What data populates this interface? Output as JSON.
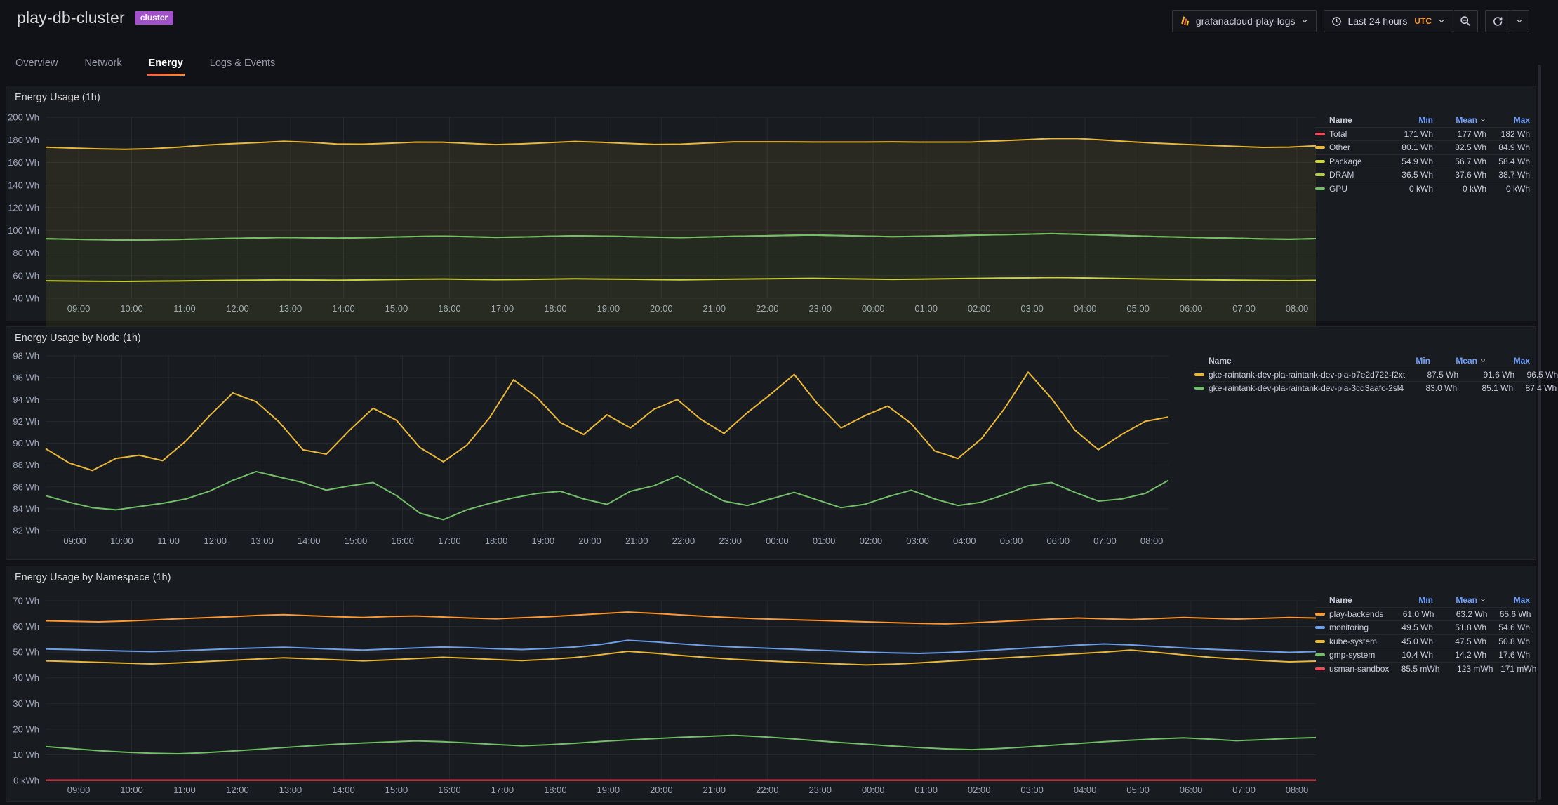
{
  "header": {
    "title": "play-db-cluster",
    "badge": "cluster"
  },
  "toolbar": {
    "datasource": {
      "label": "grafanacloud-play-logs"
    },
    "time_picker": {
      "label": "Last 24 hours",
      "timezone": "UTC"
    }
  },
  "tabs": [
    {
      "label": "Overview"
    },
    {
      "label": "Network"
    },
    {
      "label": "Energy"
    },
    {
      "label": "Logs & Events"
    }
  ],
  "active_tab": "Energy",
  "colors": {
    "accent_orange": "#FF8833",
    "badge_purple": "#A352CC",
    "legend_header_blue": "#6E9FFF",
    "utc_orange": "#FF9830"
  },
  "panels": [
    {
      "title": "Energy Usage (1h)",
      "legend": {
        "columns": [
          "Name",
          "Min",
          "Mean",
          "Max"
        ],
        "sorted_by": "Mean",
        "rows": [
          {
            "name": "Total",
            "color": "#F2495C",
            "min": "171 Wh",
            "mean": "177 Wh",
            "max": "182 Wh"
          },
          {
            "name": "Other",
            "color": "#EAB839",
            "min": "80.1 Wh",
            "mean": "82.5 Wh",
            "max": "84.9 Wh"
          },
          {
            "name": "Package",
            "color": "#CBD23B",
            "min": "54.9 Wh",
            "mean": "56.7 Wh",
            "max": "58.4 Wh"
          },
          {
            "name": "DRAM",
            "color": "#B5CC3C",
            "min": "36.5 Wh",
            "mean": "37.6 Wh",
            "max": "38.7 Wh"
          },
          {
            "name": "GPU",
            "color": "#73BF69",
            "min": "0 kWh",
            "mean": "0 kWh",
            "max": "0 kWh"
          }
        ]
      }
    },
    {
      "title": "Energy Usage by Node (1h)",
      "legend": {
        "columns": [
          "Name",
          "Min",
          "Mean",
          "Max"
        ],
        "sorted_by": "Mean",
        "rows": [
          {
            "name": "gke-raintank-dev-pla-raintank-dev-pla-b7e2d722-f2xt",
            "color": "#EAB839",
            "min": "87.5 Wh",
            "mean": "91.6 Wh",
            "max": "96.5 Wh"
          },
          {
            "name": "gke-raintank-dev-pla-raintank-dev-pla-3cd3aafc-2sl4",
            "color": "#73BF69",
            "min": "83.0 Wh",
            "mean": "85.1 Wh",
            "max": "87.4 Wh"
          }
        ]
      }
    },
    {
      "title": "Energy Usage by Namespace (1h)",
      "legend": {
        "columns": [
          "Name",
          "Min",
          "Mean",
          "Max"
        ],
        "sorted_by": "Mean",
        "rows": [
          {
            "name": "play-backends",
            "color": "#FF9830",
            "min": "61.0 Wh",
            "mean": "63.2 Wh",
            "max": "65.6 Wh"
          },
          {
            "name": "monitoring",
            "color": "#6E9FE8",
            "min": "49.5 Wh",
            "mean": "51.8 Wh",
            "max": "54.6 Wh"
          },
          {
            "name": "kube-system",
            "color": "#EAB839",
            "min": "45.0 Wh",
            "mean": "47.5 Wh",
            "max": "50.8 Wh"
          },
          {
            "name": "gmp-system",
            "color": "#73BF69",
            "min": "10.4 Wh",
            "mean": "14.2 Wh",
            "max": "17.6 Wh"
          },
          {
            "name": "usman-sandbox",
            "color": "#F2495C",
            "min": "85.5 mWh",
            "mean": "123 mWh",
            "max": "171 mWh"
          }
        ]
      }
    }
  ],
  "chart_data": [
    {
      "type": "line",
      "stacked": true,
      "title": "Energy Usage (1h)",
      "ylabel": "Wh",
      "ylim": [
        40,
        200
      ],
      "grid": true,
      "legend_position": "right-table",
      "y_tick_values": [
        200,
        180,
        160,
        140,
        120,
        100,
        80,
        60,
        40
      ],
      "y_tick_labels": [
        "200 Wh",
        "180 Wh",
        "160 Wh",
        "140 Wh",
        "120 Wh",
        "100 Wh",
        "80 Wh",
        "60 Wh",
        "40 Wh"
      ],
      "x_ticks": [
        "09:00",
        "10:00",
        "11:00",
        "12:00",
        "13:00",
        "14:00",
        "15:00",
        "16:00",
        "17:00",
        "18:00",
        "19:00",
        "20:00",
        "21:00",
        "22:00",
        "23:00",
        "00:00",
        "01:00",
        "02:00",
        "03:00",
        "04:00",
        "05:00",
        "06:00",
        "07:00",
        "08:00"
      ],
      "series": [
        {
          "name": "Package",
          "color": "#CBD23B",
          "values": [
            55.4,
            55.2,
            55.0,
            54.9,
            55.1,
            55.3,
            55.6,
            55.8,
            56.0,
            56.3,
            56.1,
            55.9,
            56.2,
            56.5,
            56.8,
            57.0,
            56.7,
            56.4,
            56.6,
            56.9,
            57.2,
            57.0,
            56.8,
            56.5,
            56.3,
            56.6,
            56.9,
            57.1,
            57.4,
            57.6,
            57.3,
            57.0,
            56.7,
            56.9,
            57.2,
            57.5,
            57.8,
            58.0,
            58.4,
            58.1,
            57.7,
            57.3,
            56.9,
            56.6,
            56.3,
            56.0,
            55.7,
            55.5,
            55.8
          ]
        },
        {
          "name": "DRAM",
          "color": "#B5CC3C",
          "values": [
            37.2,
            37.0,
            36.8,
            36.6,
            36.5,
            36.7,
            36.9,
            37.1,
            37.3,
            37.5,
            37.4,
            37.2,
            37.4,
            37.6,
            37.8,
            37.9,
            37.7,
            37.5,
            37.6,
            37.8,
            38.0,
            37.9,
            37.7,
            37.5,
            37.4,
            37.6,
            37.8,
            38.0,
            38.2,
            38.3,
            38.1,
            37.9,
            37.7,
            37.8,
            38.0,
            38.2,
            38.4,
            38.6,
            38.7,
            38.5,
            38.2,
            37.9,
            37.6,
            37.4,
            37.2,
            37.0,
            36.8,
            36.7,
            36.9
          ]
        },
        {
          "name": "GPU",
          "color": "#73BF69",
          "values": [
            0,
            0,
            0,
            0,
            0,
            0,
            0,
            0,
            0,
            0,
            0,
            0,
            0,
            0,
            0,
            0,
            0,
            0,
            0,
            0,
            0,
            0,
            0,
            0,
            0,
            0,
            0,
            0,
            0,
            0,
            0,
            0,
            0,
            0,
            0,
            0,
            0,
            0,
            0,
            0,
            0,
            0,
            0,
            0,
            0,
            0,
            0,
            0,
            0
          ]
        },
        {
          "name": "Other",
          "color": "#EAB839",
          "values": [
            80.9,
            80.5,
            80.2,
            80.1,
            80.6,
            81.5,
            82.8,
            83.6,
            84.2,
            84.9,
            84.3,
            83.2,
            82.5,
            82.9,
            83.4,
            83.0,
            82.4,
            81.8,
            82.2,
            82.8,
            83.3,
            82.9,
            82.3,
            81.9,
            82.4,
            83.0,
            83.5,
            83.1,
            82.6,
            82.2,
            82.7,
            83.2,
            83.8,
            83.3,
            82.8,
            82.4,
            82.9,
            83.5,
            84.1,
            84.6,
            83.9,
            83.1,
            82.5,
            82.0,
            81.6,
            81.2,
            80.8,
            81.4,
            82.0
          ]
        },
        {
          "name": "Total",
          "color": "#F2495C",
          "computed": "sum_of_stacked_series"
        }
      ]
    },
    {
      "type": "line",
      "stacked": false,
      "title": "Energy Usage by Node (1h)",
      "ylabel": "Wh",
      "ylim": [
        82,
        98
      ],
      "grid": true,
      "legend_position": "right-table",
      "y_tick_values": [
        98,
        96,
        94,
        92,
        90,
        88,
        86,
        84,
        82
      ],
      "y_tick_labels": [
        "98 Wh",
        "96 Wh",
        "94 Wh",
        "92 Wh",
        "90 Wh",
        "88 Wh",
        "86 Wh",
        "84 Wh",
        "82 Wh"
      ],
      "x_ticks": [
        "09:00",
        "10:00",
        "11:00",
        "12:00",
        "13:00",
        "14:00",
        "15:00",
        "16:00",
        "17:00",
        "18:00",
        "19:00",
        "20:00",
        "21:00",
        "22:00",
        "23:00",
        "00:00",
        "01:00",
        "02:00",
        "03:00",
        "04:00",
        "05:00",
        "06:00",
        "07:00",
        "08:00"
      ],
      "series": [
        {
          "name": "gke-raintank-dev-pla-raintank-dev-pla-b7e2d722-f2xt",
          "color": "#EAB839",
          "values": [
            89.5,
            88.2,
            87.5,
            88.6,
            88.9,
            88.4,
            90.2,
            92.5,
            94.6,
            93.8,
            91.9,
            89.4,
            89.0,
            91.2,
            93.2,
            92.1,
            89.6,
            88.3,
            89.8,
            92.4,
            95.8,
            94.2,
            91.9,
            90.8,
            92.6,
            91.4,
            93.1,
            94.0,
            92.2,
            90.9,
            92.8,
            94.5,
            96.3,
            93.6,
            91.4,
            92.5,
            93.4,
            91.8,
            89.3,
            88.6,
            90.4,
            93.2,
            96.5,
            94.1,
            91.2,
            89.4,
            90.8,
            92.0,
            92.4
          ]
        },
        {
          "name": "gke-raintank-dev-pla-raintank-dev-pla-3cd3aafc-2sl4",
          "color": "#73BF69",
          "values": [
            85.2,
            84.6,
            84.1,
            83.9,
            84.2,
            84.5,
            84.9,
            85.6,
            86.6,
            87.4,
            86.9,
            86.4,
            85.7,
            86.1,
            86.4,
            85.2,
            83.6,
            83.0,
            83.9,
            84.5,
            85.0,
            85.4,
            85.6,
            84.9,
            84.4,
            85.6,
            86.1,
            87.0,
            85.8,
            84.7,
            84.3,
            84.9,
            85.5,
            84.8,
            84.1,
            84.4,
            85.1,
            85.7,
            84.9,
            84.3,
            84.6,
            85.3,
            86.1,
            86.4,
            85.5,
            84.7,
            84.9,
            85.4,
            86.6
          ]
        }
      ]
    },
    {
      "type": "line",
      "stacked": false,
      "title": "Energy Usage by Namespace (1h)",
      "ylabel": "Wh",
      "ylim": [
        0,
        70
      ],
      "grid": true,
      "legend_position": "right-table",
      "y_tick_values": [
        70,
        60,
        50,
        40,
        30,
        20,
        10,
        0
      ],
      "y_tick_labels": [
        "70 Wh",
        "60 Wh",
        "50 Wh",
        "40 Wh",
        "30 Wh",
        "20 Wh",
        "10 Wh",
        "0 kWh"
      ],
      "x_ticks": [
        "09:00",
        "10:00",
        "11:00",
        "12:00",
        "13:00",
        "14:00",
        "15:00",
        "16:00",
        "17:00",
        "18:00",
        "19:00",
        "20:00",
        "21:00",
        "22:00",
        "23:00",
        "00:00",
        "01:00",
        "02:00",
        "03:00",
        "04:00",
        "05:00",
        "06:00",
        "07:00",
        "08:00"
      ],
      "series": [
        {
          "name": "play-backends",
          "color": "#FF9830",
          "values": [
            62.2,
            62.0,
            61.8,
            62.1,
            62.5,
            63.0,
            63.4,
            63.8,
            64.3,
            64.6,
            64.2,
            63.8,
            63.5,
            63.9,
            64.1,
            63.7,
            63.3,
            63.0,
            63.4,
            63.8,
            64.4,
            65.0,
            65.6,
            65.1,
            64.5,
            63.9,
            63.4,
            63.0,
            62.7,
            62.4,
            62.1,
            61.8,
            61.5,
            61.2,
            61.0,
            61.4,
            61.9,
            62.4,
            62.9,
            63.3,
            63.0,
            62.7,
            63.1,
            63.5,
            63.2,
            62.9,
            63.2,
            63.5,
            63.3
          ]
        },
        {
          "name": "monitoring",
          "color": "#6E9FE8",
          "values": [
            51.2,
            51.0,
            50.7,
            50.4,
            50.2,
            50.5,
            50.9,
            51.3,
            51.6,
            51.9,
            51.5,
            51.1,
            50.8,
            51.2,
            51.6,
            52.0,
            51.7,
            51.3,
            51.0,
            51.4,
            52.0,
            53.0,
            54.6,
            54.0,
            53.2,
            52.5,
            52.0,
            51.6,
            51.2,
            50.8,
            50.4,
            50.0,
            49.7,
            49.5,
            49.8,
            50.3,
            50.9,
            51.5,
            52.1,
            52.7,
            53.2,
            52.8,
            52.2,
            51.6,
            51.1,
            50.7,
            50.3,
            49.9,
            50.2
          ]
        },
        {
          "name": "kube-system",
          "color": "#EAB839",
          "values": [
            46.6,
            46.3,
            46.0,
            45.7,
            45.4,
            45.8,
            46.3,
            46.8,
            47.3,
            47.8,
            47.4,
            47.0,
            46.6,
            47.0,
            47.5,
            48.0,
            47.6,
            47.1,
            46.7,
            47.2,
            47.9,
            49.0,
            50.3,
            49.6,
            48.7,
            47.9,
            47.2,
            46.7,
            46.2,
            45.8,
            45.4,
            45.0,
            45.3,
            45.8,
            46.4,
            47.0,
            47.6,
            48.2,
            48.8,
            49.4,
            50.0,
            50.8,
            49.9,
            48.9,
            48.0,
            47.3,
            46.7,
            46.2,
            46.5
          ]
        },
        {
          "name": "gmp-system",
          "color": "#73BF69",
          "values": [
            13.2,
            12.4,
            11.6,
            11.0,
            10.6,
            10.4,
            10.8,
            11.4,
            12.1,
            12.8,
            13.5,
            14.1,
            14.6,
            15.0,
            15.4,
            15.1,
            14.6,
            14.0,
            13.5,
            13.9,
            14.5,
            15.2,
            15.8,
            16.3,
            16.8,
            17.2,
            17.6,
            17.1,
            16.4,
            15.6,
            14.8,
            14.1,
            13.4,
            12.8,
            12.3,
            12.0,
            12.4,
            13.0,
            13.7,
            14.4,
            15.1,
            15.7,
            16.2,
            16.6,
            16.1,
            15.5,
            15.9,
            16.4,
            16.7
          ]
        },
        {
          "name": "usman-sandbox",
          "color": "#F2495C",
          "values": [
            0.1,
            0.1,
            0.1,
            0.1,
            0.1,
            0.1,
            0.1,
            0.1,
            0.1,
            0.1,
            0.1,
            0.1,
            0.1,
            0.1,
            0.1,
            0.1,
            0.1,
            0.1,
            0.1,
            0.1,
            0.1,
            0.1,
            0.1,
            0.1,
            0.1,
            0.1,
            0.1,
            0.1,
            0.1,
            0.1,
            0.1,
            0.1,
            0.1,
            0.1,
            0.1,
            0.1,
            0.1,
            0.1,
            0.1,
            0.1,
            0.1,
            0.1,
            0.1,
            0.1,
            0.1,
            0.1,
            0.1,
            0.1,
            0.1
          ]
        }
      ]
    }
  ]
}
